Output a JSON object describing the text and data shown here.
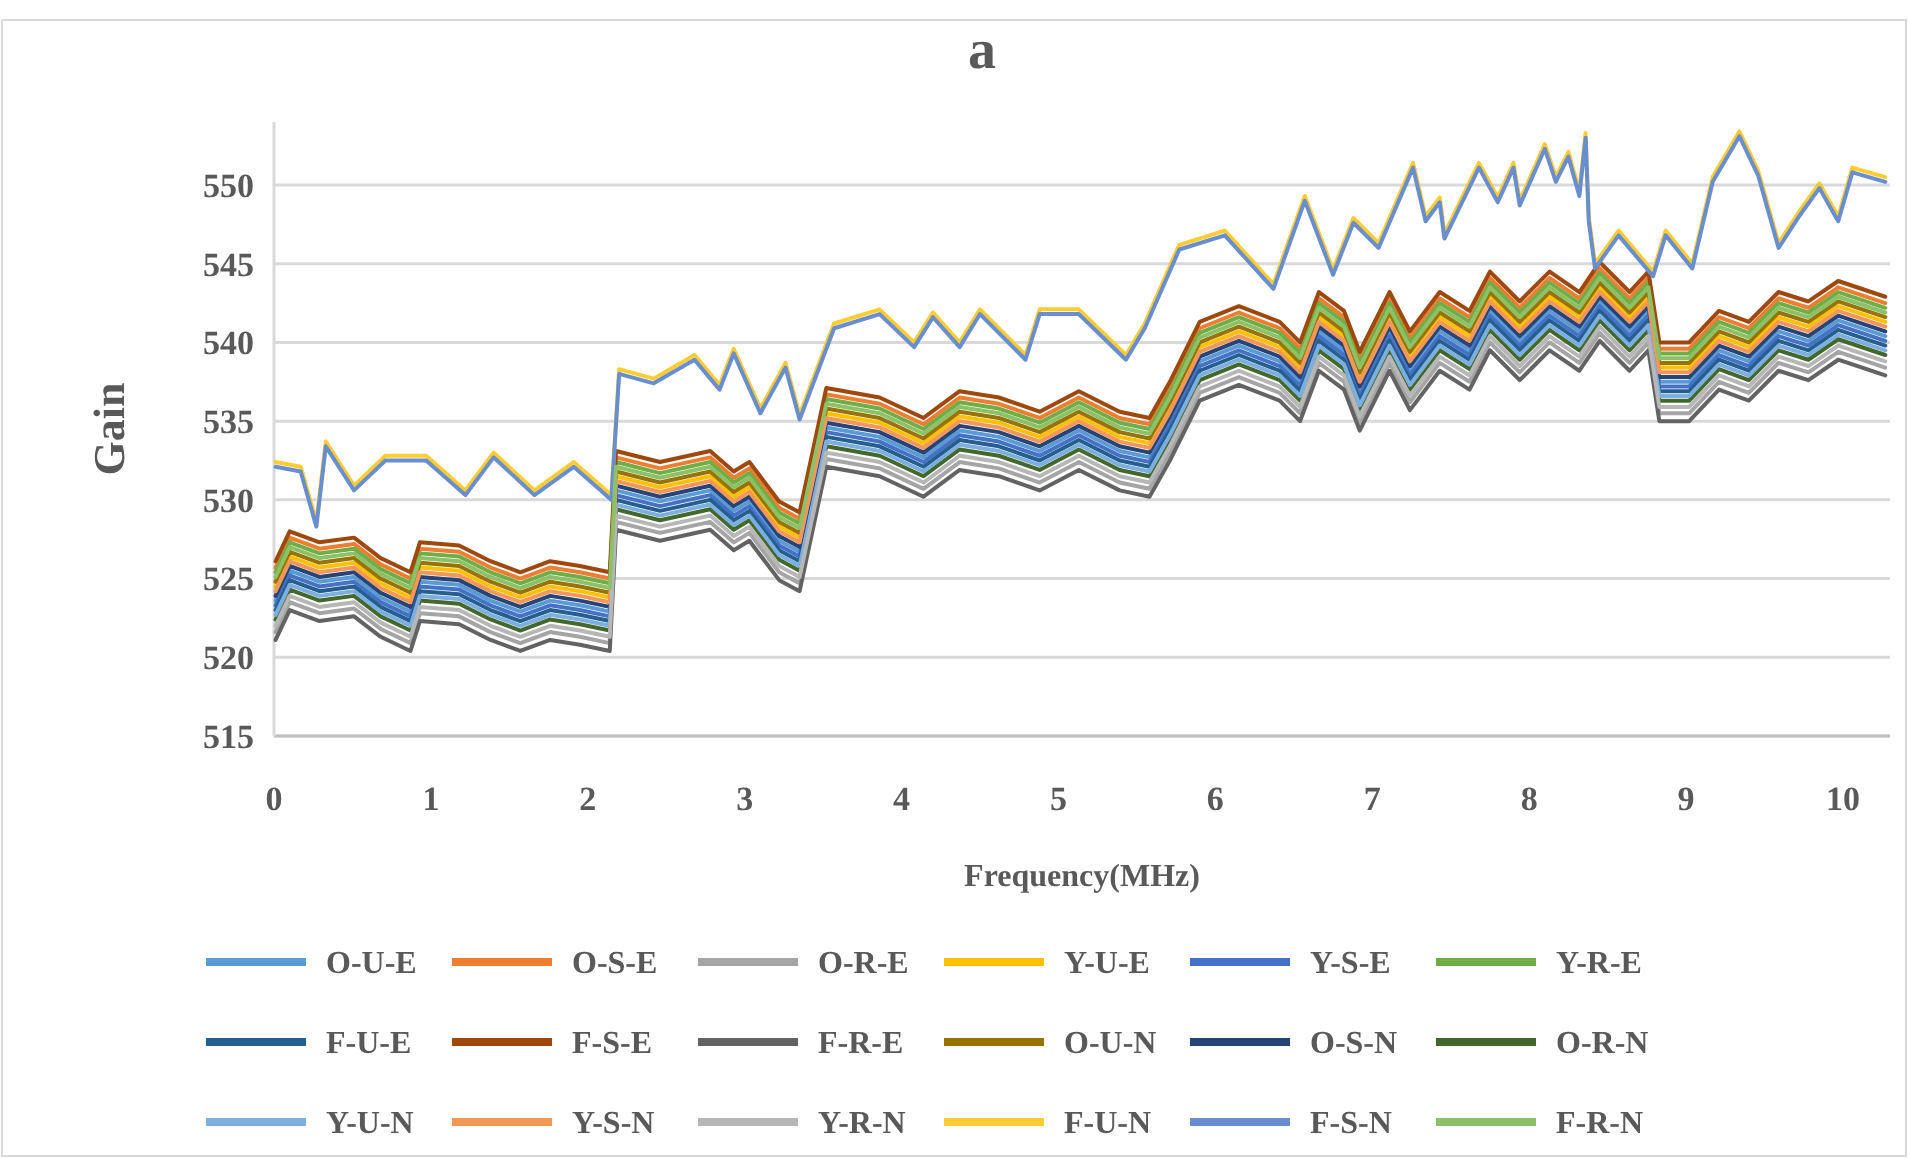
{
  "chart_data": {
    "type": "line",
    "title": "a",
    "xlabel": "Frequency(MHz)",
    "ylabel": "Gain",
    "xlim": [
      0,
      10.3
    ],
    "xticks": [
      0,
      1,
      2,
      3,
      4,
      5,
      6,
      7,
      8,
      9,
      10
    ],
    "ylim": [
      515,
      554
    ],
    "yticks": [
      515,
      520,
      525,
      530,
      535,
      540,
      545,
      550
    ],
    "grid": "y",
    "legend": "bottom",
    "x": [
      0.01,
      0.1,
      0.29,
      0.51,
      0.68,
      0.87,
      0.93,
      1.18,
      1.38,
      1.57,
      1.76,
      1.95,
      2.14,
      2.18,
      2.46,
      2.78,
      2.93,
      3.03,
      3.22,
      3.35,
      3.52,
      3.86,
      4.14,
      4.37,
      4.62,
      4.88,
      5.13,
      5.39,
      5.58,
      5.71,
      5.9,
      6.15,
      6.41,
      6.54,
      6.66,
      6.82,
      6.92,
      7.11,
      7.24,
      7.43,
      7.62,
      7.75,
      7.94,
      8.13,
      8.32,
      8.45,
      8.64,
      8.76,
      8.83,
      9.02,
      9.21,
      9.4,
      9.59,
      9.78,
      9.97,
      10.27
    ],
    "series": [
      {
        "name": "O-U-E",
        "color": "#5b9bd5",
        "values": [
          523.6,
          525.5,
          524.8,
          525.1,
          523.8,
          522.9,
          524.8,
          524.6,
          523.6,
          522.9,
          523.6,
          523.3,
          522.9,
          530.6,
          529.9,
          530.6,
          529.3,
          529.9,
          527.4,
          526.7,
          534.6,
          534.0,
          532.7,
          534.4,
          534.0,
          533.1,
          534.4,
          533.1,
          532.7,
          535.0,
          538.8,
          539.8,
          538.8,
          537.5,
          540.7,
          539.5,
          536.9,
          540.7,
          538.2,
          540.7,
          539.5,
          542.0,
          540.1,
          542.0,
          540.7,
          542.6,
          540.7,
          542.0,
          537.5,
          537.5,
          539.5,
          538.8,
          540.7,
          540.1,
          541.4,
          540.4
        ]
      },
      {
        "name": "O-S-E",
        "color": "#ed7d31",
        "values": [
          525.7,
          527.6,
          526.9,
          527.2,
          525.9,
          525.0,
          526.9,
          526.7,
          525.7,
          525.0,
          525.7,
          525.4,
          525.0,
          532.7,
          532.0,
          532.7,
          531.4,
          532.0,
          529.5,
          528.8,
          536.7,
          536.1,
          534.8,
          536.5,
          536.1,
          535.2,
          536.5,
          535.2,
          534.8,
          537.1,
          540.9,
          541.9,
          540.9,
          539.6,
          542.8,
          541.6,
          539.0,
          542.8,
          540.3,
          542.8,
          541.6,
          544.1,
          542.2,
          544.1,
          542.8,
          544.7,
          542.8,
          544.1,
          539.6,
          539.6,
          541.6,
          540.9,
          542.8,
          542.2,
          543.5,
          542.5
        ]
      },
      {
        "name": "O-R-E",
        "color": "#a5a5a5",
        "values": [
          521.6,
          523.5,
          522.8,
          523.1,
          521.8,
          520.9,
          522.8,
          522.6,
          521.6,
          520.9,
          521.6,
          521.3,
          520.9,
          528.6,
          527.9,
          528.6,
          527.3,
          527.9,
          525.4,
          524.7,
          532.6,
          532.0,
          530.7,
          532.4,
          532.0,
          531.1,
          532.4,
          531.1,
          530.7,
          533.0,
          536.8,
          537.8,
          536.8,
          535.5,
          538.7,
          537.5,
          534.9,
          538.7,
          536.2,
          538.7,
          537.5,
          540.0,
          538.1,
          540.0,
          538.7,
          540.6,
          538.7,
          540.0,
          535.5,
          535.5,
          537.5,
          536.8,
          538.7,
          538.1,
          539.4,
          538.4
        ]
      },
      {
        "name": "Y-U-E",
        "color": "#ffc000",
        "values": [
          524.5,
          526.4,
          525.7,
          526.0,
          524.7,
          523.8,
          525.7,
          525.5,
          524.5,
          523.8,
          524.5,
          524.2,
          523.8,
          531.5,
          530.8,
          531.5,
          530.2,
          530.8,
          528.3,
          527.6,
          535.5,
          534.9,
          533.6,
          535.3,
          534.9,
          534.0,
          535.3,
          534.0,
          533.6,
          535.9,
          539.7,
          540.7,
          539.7,
          538.4,
          541.6,
          540.4,
          537.8,
          541.6,
          539.1,
          541.6,
          540.4,
          542.9,
          541.0,
          542.9,
          541.6,
          543.5,
          541.6,
          542.9,
          538.4,
          538.4,
          540.4,
          539.7,
          541.6,
          541.0,
          542.3,
          541.3
        ]
      },
      {
        "name": "Y-S-E",
        "color": "#4472c4",
        "values": [
          523.3,
          525.2,
          524.5,
          524.8,
          523.5,
          522.6,
          524.5,
          524.3,
          523.3,
          522.6,
          523.3,
          523.0,
          522.6,
          530.3,
          529.6,
          530.3,
          529.0,
          529.6,
          527.1,
          526.4,
          534.3,
          533.7,
          532.4,
          534.1,
          533.7,
          532.8,
          534.1,
          532.8,
          532.4,
          534.7,
          538.5,
          539.5,
          538.5,
          537.2,
          540.4,
          539.2,
          536.6,
          540.4,
          537.9,
          540.4,
          539.2,
          541.7,
          539.8,
          541.7,
          540.4,
          542.3,
          540.4,
          541.7,
          537.2,
          537.2,
          539.2,
          538.5,
          540.4,
          539.8,
          541.1,
          540.1
        ]
      },
      {
        "name": "Y-R-E",
        "color": "#70ad47",
        "values": [
          525.4,
          527.3,
          526.6,
          526.9,
          525.6,
          524.7,
          526.6,
          526.4,
          525.4,
          524.7,
          525.4,
          525.1,
          524.7,
          532.4,
          531.7,
          532.4,
          531.1,
          531.7,
          529.2,
          528.5,
          536.4,
          535.8,
          534.5,
          536.2,
          535.8,
          534.9,
          536.2,
          534.9,
          534.5,
          536.8,
          540.6,
          541.6,
          540.6,
          539.3,
          542.5,
          541.3,
          538.7,
          542.5,
          540.0,
          542.5,
          541.3,
          543.8,
          541.9,
          543.8,
          542.5,
          544.4,
          542.5,
          543.8,
          539.3,
          539.3,
          541.3,
          540.6,
          542.5,
          541.9,
          543.2,
          542.2
        ]
      },
      {
        "name": "F-U-E",
        "color": "#255e91",
        "values": [
          523.0,
          524.9,
          524.2,
          524.5,
          523.2,
          522.3,
          524.2,
          524.0,
          523.0,
          522.3,
          523.0,
          522.7,
          522.3,
          530.0,
          529.3,
          530.0,
          528.7,
          529.3,
          526.8,
          526.1,
          534.0,
          533.4,
          532.1,
          533.8,
          533.4,
          532.5,
          533.8,
          532.5,
          532.1,
          534.4,
          538.2,
          539.2,
          538.2,
          536.9,
          540.1,
          538.9,
          536.3,
          540.1,
          537.6,
          540.1,
          538.9,
          541.4,
          539.5,
          541.4,
          540.1,
          542.0,
          540.1,
          541.4,
          536.9,
          536.9,
          538.9,
          538.2,
          540.1,
          539.5,
          540.8,
          539.8
        ]
      },
      {
        "name": "F-S-E",
        "color": "#9e480e",
        "values": [
          526.1,
          528.0,
          527.3,
          527.6,
          526.3,
          525.4,
          527.3,
          527.1,
          526.1,
          525.4,
          526.1,
          525.8,
          525.4,
          533.1,
          532.4,
          533.1,
          531.8,
          532.4,
          529.9,
          529.2,
          537.1,
          536.5,
          535.2,
          536.9,
          536.5,
          535.6,
          536.9,
          535.6,
          535.2,
          537.5,
          541.3,
          542.3,
          541.3,
          540.0,
          543.2,
          542.0,
          539.4,
          543.2,
          540.7,
          543.2,
          542.0,
          544.5,
          542.6,
          544.5,
          543.2,
          545.1,
          543.2,
          544.5,
          540.0,
          540.0,
          542.0,
          541.3,
          543.2,
          542.6,
          543.9,
          542.9
        ]
      },
      {
        "name": "F-R-E",
        "color": "#636363",
        "values": [
          521.1,
          523.0,
          522.3,
          522.6,
          521.3,
          520.4,
          522.3,
          522.1,
          521.1,
          520.4,
          521.1,
          520.8,
          520.4,
          528.1,
          527.4,
          528.1,
          526.8,
          527.4,
          524.9,
          524.2,
          532.1,
          531.5,
          530.2,
          531.9,
          531.5,
          530.6,
          531.9,
          530.6,
          530.2,
          532.5,
          536.3,
          537.3,
          536.3,
          535.0,
          538.2,
          537.0,
          534.4,
          538.2,
          535.7,
          538.2,
          537.0,
          539.5,
          537.6,
          539.5,
          538.2,
          540.1,
          538.2,
          539.5,
          535.0,
          535.0,
          537.0,
          536.3,
          538.2,
          537.6,
          538.9,
          537.9
        ]
      },
      {
        "name": "O-U-N",
        "color": "#997300",
        "values": [
          524.8,
          526.7,
          526.0,
          526.3,
          525.0,
          524.1,
          526.0,
          525.8,
          524.8,
          524.1,
          524.8,
          524.5,
          524.1,
          531.8,
          531.1,
          531.8,
          530.5,
          531.1,
          528.6,
          527.9,
          535.8,
          535.2,
          533.9,
          535.6,
          535.2,
          534.3,
          535.6,
          534.3,
          533.9,
          536.2,
          540.0,
          541.0,
          540.0,
          538.7,
          541.9,
          540.7,
          538.1,
          541.9,
          539.4,
          541.9,
          540.7,
          543.2,
          541.3,
          543.2,
          541.9,
          543.8,
          541.9,
          543.2,
          538.7,
          538.7,
          540.7,
          540.0,
          541.9,
          541.3,
          542.6,
          541.6
        ]
      },
      {
        "name": "O-S-N",
        "color": "#264478",
        "values": [
          523.9,
          525.8,
          525.1,
          525.4,
          524.1,
          523.2,
          525.1,
          524.9,
          523.9,
          523.2,
          523.9,
          523.6,
          523.2,
          530.9,
          530.2,
          530.9,
          529.6,
          530.2,
          527.7,
          527.0,
          534.9,
          534.3,
          533.0,
          534.7,
          534.3,
          533.4,
          534.7,
          533.4,
          533.0,
          535.3,
          539.1,
          540.1,
          539.1,
          537.8,
          541.0,
          539.8,
          537.2,
          541.0,
          538.5,
          541.0,
          539.8,
          542.3,
          540.4,
          542.3,
          541.0,
          542.9,
          541.0,
          542.3,
          537.8,
          537.8,
          539.8,
          539.1,
          541.0,
          540.4,
          541.7,
          540.7
        ]
      },
      {
        "name": "O-R-N",
        "color": "#43682b",
        "values": [
          522.4,
          524.3,
          523.6,
          523.9,
          522.6,
          521.7,
          523.6,
          523.4,
          522.4,
          521.7,
          522.4,
          522.1,
          521.7,
          529.4,
          528.7,
          529.4,
          528.1,
          528.7,
          526.2,
          525.5,
          533.4,
          532.8,
          531.5,
          533.2,
          532.8,
          531.9,
          533.2,
          531.9,
          531.5,
          533.8,
          537.6,
          538.6,
          537.6,
          536.3,
          539.5,
          538.3,
          535.7,
          539.5,
          537.0,
          539.5,
          538.3,
          540.8,
          538.9,
          540.8,
          539.5,
          541.4,
          539.5,
          540.8,
          536.3,
          536.3,
          538.3,
          537.6,
          539.5,
          538.9,
          540.2,
          539.2
        ]
      },
      {
        "name": "Y-U-N",
        "color": "#7cafdd",
        "values": [
          522.7,
          524.6,
          523.9,
          524.2,
          522.9,
          522.0,
          523.9,
          523.7,
          522.7,
          522.0,
          522.7,
          522.4,
          522.0,
          529.7,
          529.0,
          529.7,
          528.4,
          529.0,
          526.5,
          525.8,
          533.7,
          533.1,
          531.8,
          533.5,
          533.1,
          532.2,
          533.5,
          532.2,
          531.8,
          534.1,
          537.9,
          538.9,
          537.9,
          536.6,
          539.8,
          538.6,
          536.0,
          539.8,
          537.3,
          539.8,
          538.6,
          541.1,
          539.2,
          541.1,
          539.8,
          541.7,
          539.8,
          541.1,
          536.6,
          536.6,
          538.6,
          537.9,
          539.8,
          539.2,
          540.5,
          539.5
        ]
      },
      {
        "name": "Y-S-N",
        "color": "#f1975a",
        "values": [
          524.2,
          526.1,
          525.4,
          525.7,
          524.4,
          523.5,
          525.4,
          525.2,
          524.2,
          523.5,
          524.2,
          523.9,
          523.5,
          531.2,
          530.5,
          531.2,
          529.9,
          530.5,
          528.0,
          527.3,
          535.2,
          534.6,
          533.3,
          535.0,
          534.6,
          533.7,
          535.0,
          533.7,
          533.3,
          535.6,
          539.4,
          540.4,
          539.4,
          538.1,
          541.3,
          540.1,
          537.5,
          541.3,
          538.8,
          541.3,
          540.1,
          542.6,
          540.7,
          542.6,
          541.3,
          543.2,
          541.3,
          542.6,
          538.1,
          538.1,
          540.1,
          539.4,
          541.3,
          540.7,
          542.0,
          541.0
        ]
      },
      {
        "name": "Y-R-N",
        "color": "#b7b7b7",
        "values": [
          522.0,
          523.9,
          523.2,
          523.5,
          522.2,
          521.3,
          523.2,
          523.0,
          522.0,
          521.3,
          522.0,
          521.7,
          521.3,
          529.0,
          528.3,
          529.0,
          527.7,
          528.3,
          525.8,
          525.1,
          533.0,
          532.4,
          531.1,
          532.8,
          532.4,
          531.5,
          532.8,
          531.5,
          531.1,
          533.4,
          537.2,
          538.2,
          537.2,
          535.9,
          539.1,
          537.9,
          535.3,
          539.1,
          536.6,
          539.1,
          537.9,
          540.4,
          538.5,
          540.4,
          539.1,
          541.0,
          539.1,
          540.4,
          535.9,
          535.9,
          537.9,
          537.2,
          539.1,
          538.5,
          539.8,
          538.8
        ]
      },
      {
        "name": "F-U-N",
        "color": "#ffcd33",
        "x": [
          0.01,
          0.17,
          0.27,
          0.33,
          0.51,
          0.71,
          0.97,
          1.22,
          1.4,
          1.66,
          1.91,
          2.15,
          2.2,
          2.42,
          2.68,
          2.84,
          2.93,
          3.1,
          3.26,
          3.35,
          3.57,
          3.86,
          4.08,
          4.2,
          4.37,
          4.5,
          4.79,
          4.88,
          5.13,
          5.43,
          5.55,
          5.77,
          6.06,
          6.37,
          6.57,
          6.75,
          6.88,
          7.04,
          7.26,
          7.34,
          7.43,
          7.46,
          7.68,
          7.8,
          7.9,
          7.94,
          8.1,
          8.17,
          8.25,
          8.32,
          8.36,
          8.38,
          8.42,
          8.57,
          8.79,
          8.87,
          9.04,
          9.17,
          9.34,
          9.46,
          9.59,
          9.72,
          9.85,
          9.97,
          10.06,
          10.27
        ],
        "values": [
          532.4,
          532.1,
          528.6,
          533.7,
          530.9,
          532.8,
          532.8,
          530.6,
          533.0,
          530.6,
          532.4,
          530.3,
          538.3,
          537.7,
          539.2,
          537.3,
          539.6,
          535.8,
          538.7,
          535.4,
          541.2,
          542.1,
          540.0,
          541.9,
          540.0,
          542.1,
          539.2,
          542.1,
          542.1,
          539.2,
          541.2,
          546.2,
          547.1,
          543.7,
          549.3,
          544.6,
          547.9,
          546.3,
          551.4,
          548.0,
          549.2,
          546.9,
          551.4,
          549.2,
          551.4,
          549.0,
          552.6,
          550.5,
          552.1,
          549.6,
          553.3,
          548.0,
          545.0,
          547.1,
          544.5,
          547.1,
          545.0,
          550.5,
          553.4,
          550.9,
          546.3,
          548.3,
          550.1,
          548.0,
          551.1,
          550.5
        ]
      },
      {
        "name": "F-S-N",
        "color": "#698ed0",
        "x": [
          0.01,
          0.17,
          0.27,
          0.33,
          0.51,
          0.71,
          0.97,
          1.22,
          1.4,
          1.66,
          1.91,
          2.15,
          2.2,
          2.42,
          2.68,
          2.84,
          2.93,
          3.1,
          3.26,
          3.35,
          3.57,
          3.86,
          4.08,
          4.2,
          4.37,
          4.5,
          4.79,
          4.88,
          5.13,
          5.43,
          5.55,
          5.77,
          6.06,
          6.37,
          6.57,
          6.75,
          6.88,
          7.04,
          7.26,
          7.34,
          7.43,
          7.46,
          7.68,
          7.8,
          7.9,
          7.94,
          8.1,
          8.17,
          8.25,
          8.32,
          8.36,
          8.38,
          8.42,
          8.57,
          8.79,
          8.87,
          9.04,
          9.17,
          9.34,
          9.46,
          9.59,
          9.72,
          9.85,
          9.97,
          10.06,
          10.27
        ],
        "values": [
          532.1,
          531.8,
          528.3,
          533.4,
          530.6,
          532.5,
          532.5,
          530.3,
          532.7,
          530.3,
          532.1,
          530.0,
          538.0,
          537.4,
          538.9,
          537.0,
          539.3,
          535.5,
          538.4,
          535.1,
          540.9,
          541.8,
          539.7,
          541.6,
          539.7,
          541.8,
          538.9,
          541.8,
          541.8,
          538.9,
          540.9,
          545.9,
          546.8,
          543.4,
          549.0,
          544.3,
          547.6,
          546.0,
          551.1,
          547.7,
          548.9,
          546.6,
          551.1,
          548.9,
          551.1,
          548.7,
          552.3,
          550.2,
          551.8,
          549.3,
          553.0,
          547.7,
          544.7,
          546.8,
          544.2,
          546.8,
          544.7,
          550.2,
          553.1,
          550.6,
          546.0,
          548.0,
          549.8,
          547.7,
          550.8,
          550.2
        ]
      },
      {
        "name": "F-R-N",
        "color": "#8cc168",
        "values": [
          525.1,
          527.0,
          526.3,
          526.6,
          525.3,
          524.4,
          526.3,
          526.1,
          525.1,
          524.4,
          525.1,
          524.8,
          524.4,
          532.1,
          531.4,
          532.1,
          530.8,
          531.4,
          528.9,
          528.2,
          536.1,
          535.5,
          534.2,
          535.9,
          535.5,
          534.6,
          535.9,
          534.6,
          534.2,
          536.5,
          540.3,
          541.3,
          540.3,
          539.0,
          542.2,
          541.0,
          538.4,
          542.2,
          539.7,
          542.2,
          541.0,
          543.5,
          541.6,
          543.5,
          542.2,
          544.1,
          542.2,
          543.5,
          539.0,
          539.0,
          541.0,
          540.3,
          542.2,
          541.6,
          542.9,
          541.9
        ]
      }
    ]
  }
}
